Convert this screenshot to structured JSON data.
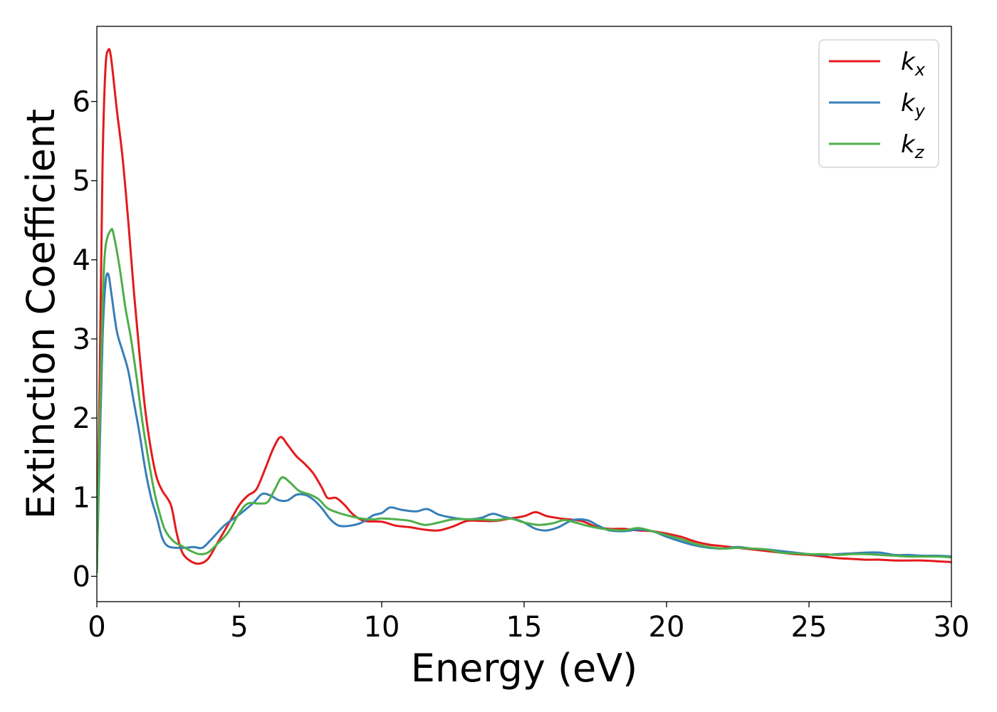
{
  "chart_data": {
    "type": "line",
    "title": "",
    "xlabel": "Energy (eV)",
    "ylabel": "Extinction Coefficient",
    "xlim": [
      0,
      30
    ],
    "ylim": [
      -0.32,
      6.95
    ],
    "xticks": [
      0,
      5,
      10,
      15,
      20,
      25,
      30
    ],
    "yticks": [
      0,
      1,
      2,
      3,
      4,
      5,
      6
    ],
    "grid": false,
    "legend_position": "top-right",
    "series": [
      {
        "key": "x",
        "legend_main": "k",
        "legend_sub": "x",
        "color": "#e41a1c",
        "points": [
          [
            0,
            0.05
          ],
          [
            0.1,
            2.5
          ],
          [
            0.2,
            5.2
          ],
          [
            0.3,
            6.4
          ],
          [
            0.4,
            6.65
          ],
          [
            0.5,
            6.55
          ],
          [
            0.7,
            5.9
          ],
          [
            0.9,
            5.3
          ],
          [
            1.1,
            4.5
          ],
          [
            1.3,
            3.6
          ],
          [
            1.5,
            2.8
          ],
          [
            1.7,
            2.1
          ],
          [
            1.9,
            1.6
          ],
          [
            2.1,
            1.25
          ],
          [
            2.3,
            1.08
          ],
          [
            2.6,
            0.9
          ],
          [
            2.8,
            0.55
          ],
          [
            3.0,
            0.3
          ],
          [
            3.3,
            0.19
          ],
          [
            3.6,
            0.16
          ],
          [
            3.9,
            0.22
          ],
          [
            4.2,
            0.4
          ],
          [
            4.6,
            0.65
          ],
          [
            5.0,
            0.9
          ],
          [
            5.3,
            1.02
          ],
          [
            5.6,
            1.1
          ],
          [
            5.9,
            1.35
          ],
          [
            6.2,
            1.62
          ],
          [
            6.45,
            1.76
          ],
          [
            6.7,
            1.66
          ],
          [
            7.0,
            1.52
          ],
          [
            7.3,
            1.42
          ],
          [
            7.6,
            1.3
          ],
          [
            7.9,
            1.12
          ],
          [
            8.1,
            0.99
          ],
          [
            8.4,
            0.99
          ],
          [
            8.7,
            0.9
          ],
          [
            9.0,
            0.78
          ],
          [
            9.4,
            0.7
          ],
          [
            10.0,
            0.69
          ],
          [
            10.5,
            0.64
          ],
          [
            11.0,
            0.62
          ],
          [
            11.5,
            0.59
          ],
          [
            12.0,
            0.58
          ],
          [
            12.5,
            0.63
          ],
          [
            13.0,
            0.7
          ],
          [
            13.5,
            0.7
          ],
          [
            14.0,
            0.7
          ],
          [
            14.5,
            0.73
          ],
          [
            15.0,
            0.76
          ],
          [
            15.4,
            0.81
          ],
          [
            15.8,
            0.76
          ],
          [
            16.3,
            0.73
          ],
          [
            17.0,
            0.7
          ],
          [
            17.5,
            0.63
          ],
          [
            18.0,
            0.6
          ],
          [
            18.5,
            0.6
          ],
          [
            19.0,
            0.58
          ],
          [
            19.5,
            0.57
          ],
          [
            20.0,
            0.54
          ],
          [
            20.5,
            0.5
          ],
          [
            21.0,
            0.44
          ],
          [
            21.5,
            0.4
          ],
          [
            22.0,
            0.38
          ],
          [
            22.5,
            0.36
          ],
          [
            23.0,
            0.34
          ],
          [
            23.5,
            0.32
          ],
          [
            24.0,
            0.3
          ],
          [
            24.5,
            0.28
          ],
          [
            25.0,
            0.27
          ],
          [
            25.5,
            0.25
          ],
          [
            26.0,
            0.23
          ],
          [
            26.5,
            0.22
          ],
          [
            27.0,
            0.21
          ],
          [
            27.5,
            0.21
          ],
          [
            28.0,
            0.2
          ],
          [
            28.5,
            0.2
          ],
          [
            29.0,
            0.2
          ],
          [
            29.5,
            0.19
          ],
          [
            30.0,
            0.18
          ]
        ]
      },
      {
        "key": "y",
        "legend_main": "k",
        "legend_sub": "y",
        "color": "#377eb8",
        "points": [
          [
            0,
            0.05
          ],
          [
            0.1,
            1.6
          ],
          [
            0.2,
            3.0
          ],
          [
            0.3,
            3.7
          ],
          [
            0.4,
            3.82
          ],
          [
            0.5,
            3.6
          ],
          [
            0.7,
            3.1
          ],
          [
            0.9,
            2.85
          ],
          [
            1.1,
            2.6
          ],
          [
            1.3,
            2.2
          ],
          [
            1.5,
            1.8
          ],
          [
            1.7,
            1.35
          ],
          [
            1.9,
            1.0
          ],
          [
            2.1,
            0.75
          ],
          [
            2.3,
            0.48
          ],
          [
            2.5,
            0.38
          ],
          [
            2.8,
            0.36
          ],
          [
            3.1,
            0.36
          ],
          [
            3.4,
            0.37
          ],
          [
            3.7,
            0.36
          ],
          [
            4.0,
            0.46
          ],
          [
            4.5,
            0.65
          ],
          [
            5.0,
            0.78
          ],
          [
            5.5,
            0.93
          ],
          [
            5.8,
            1.04
          ],
          [
            6.1,
            1.02
          ],
          [
            6.4,
            0.96
          ],
          [
            6.7,
            0.96
          ],
          [
            7.0,
            1.03
          ],
          [
            7.3,
            1.03
          ],
          [
            7.6,
            0.97
          ],
          [
            7.9,
            0.86
          ],
          [
            8.2,
            0.72
          ],
          [
            8.5,
            0.64
          ],
          [
            8.9,
            0.64
          ],
          [
            9.3,
            0.68
          ],
          [
            9.7,
            0.77
          ],
          [
            10.0,
            0.8
          ],
          [
            10.3,
            0.87
          ],
          [
            10.7,
            0.84
          ],
          [
            11.2,
            0.82
          ],
          [
            11.6,
            0.85
          ],
          [
            12.0,
            0.78
          ],
          [
            12.5,
            0.74
          ],
          [
            13.0,
            0.72
          ],
          [
            13.5,
            0.74
          ],
          [
            13.9,
            0.79
          ],
          [
            14.3,
            0.75
          ],
          [
            14.7,
            0.72
          ],
          [
            15.0,
            0.68
          ],
          [
            15.4,
            0.6
          ],
          [
            15.8,
            0.58
          ],
          [
            16.2,
            0.62
          ],
          [
            16.7,
            0.71
          ],
          [
            17.2,
            0.71
          ],
          [
            17.6,
            0.64
          ],
          [
            18.0,
            0.58
          ],
          [
            18.5,
            0.57
          ],
          [
            19.0,
            0.59
          ],
          [
            19.5,
            0.57
          ],
          [
            20.0,
            0.5
          ],
          [
            20.5,
            0.44
          ],
          [
            21.0,
            0.39
          ],
          [
            21.5,
            0.36
          ],
          [
            22.0,
            0.35
          ],
          [
            22.5,
            0.37
          ],
          [
            23.0,
            0.35
          ],
          [
            23.5,
            0.34
          ],
          [
            24.0,
            0.32
          ],
          [
            24.5,
            0.3
          ],
          [
            25.0,
            0.28
          ],
          [
            25.5,
            0.27
          ],
          [
            26.0,
            0.28
          ],
          [
            26.5,
            0.29
          ],
          [
            27.0,
            0.3
          ],
          [
            27.5,
            0.3
          ],
          [
            28.0,
            0.27
          ],
          [
            28.5,
            0.27
          ],
          [
            29.0,
            0.26
          ],
          [
            29.5,
            0.26
          ],
          [
            30.0,
            0.25
          ]
        ]
      },
      {
        "key": "z",
        "legend_main": "k",
        "legend_sub": "z",
        "color": "#4daf4a",
        "points": [
          [
            0,
            0.05
          ],
          [
            0.1,
            1.9
          ],
          [
            0.2,
            3.4
          ],
          [
            0.3,
            4.15
          ],
          [
            0.5,
            4.38
          ],
          [
            0.6,
            4.3
          ],
          [
            0.8,
            3.9
          ],
          [
            1.0,
            3.4
          ],
          [
            1.2,
            3.0
          ],
          [
            1.4,
            2.5
          ],
          [
            1.6,
            1.95
          ],
          [
            1.8,
            1.5
          ],
          [
            2.0,
            1.1
          ],
          [
            2.2,
            0.8
          ],
          [
            2.4,
            0.58
          ],
          [
            2.7,
            0.44
          ],
          [
            3.0,
            0.38
          ],
          [
            3.3,
            0.32
          ],
          [
            3.6,
            0.28
          ],
          [
            3.9,
            0.3
          ],
          [
            4.2,
            0.4
          ],
          [
            4.6,
            0.55
          ],
          [
            5.0,
            0.8
          ],
          [
            5.3,
            0.92
          ],
          [
            5.7,
            0.92
          ],
          [
            6.0,
            0.94
          ],
          [
            6.25,
            1.1
          ],
          [
            6.5,
            1.25
          ],
          [
            6.8,
            1.18
          ],
          [
            7.1,
            1.08
          ],
          [
            7.5,
            1.03
          ],
          [
            7.8,
            0.97
          ],
          [
            8.1,
            0.86
          ],
          [
            8.5,
            0.8
          ],
          [
            8.9,
            0.76
          ],
          [
            9.3,
            0.73
          ],
          [
            9.7,
            0.72
          ],
          [
            10.0,
            0.73
          ],
          [
            10.5,
            0.72
          ],
          [
            11.0,
            0.7
          ],
          [
            11.5,
            0.65
          ],
          [
            12.0,
            0.68
          ],
          [
            12.5,
            0.72
          ],
          [
            13.0,
            0.72
          ],
          [
            13.5,
            0.72
          ],
          [
            14.0,
            0.71
          ],
          [
            14.5,
            0.73
          ],
          [
            15.0,
            0.68
          ],
          [
            15.5,
            0.65
          ],
          [
            16.0,
            0.67
          ],
          [
            16.4,
            0.71
          ],
          [
            16.8,
            0.68
          ],
          [
            17.2,
            0.64
          ],
          [
            17.6,
            0.61
          ],
          [
            18.0,
            0.59
          ],
          [
            18.5,
            0.58
          ],
          [
            19.0,
            0.61
          ],
          [
            19.5,
            0.57
          ],
          [
            20.0,
            0.52
          ],
          [
            20.5,
            0.47
          ],
          [
            21.0,
            0.41
          ],
          [
            21.5,
            0.37
          ],
          [
            22.0,
            0.35
          ],
          [
            22.5,
            0.36
          ],
          [
            23.0,
            0.35
          ],
          [
            23.5,
            0.34
          ],
          [
            24.0,
            0.3
          ],
          [
            24.5,
            0.29
          ],
          [
            25.0,
            0.28
          ],
          [
            25.5,
            0.28
          ],
          [
            26.0,
            0.27
          ],
          [
            26.5,
            0.28
          ],
          [
            27.0,
            0.28
          ],
          [
            27.5,
            0.27
          ],
          [
            28.0,
            0.26
          ],
          [
            28.5,
            0.25
          ],
          [
            29.0,
            0.25
          ],
          [
            29.5,
            0.25
          ],
          [
            30.0,
            0.24
          ]
        ]
      }
    ]
  }
}
